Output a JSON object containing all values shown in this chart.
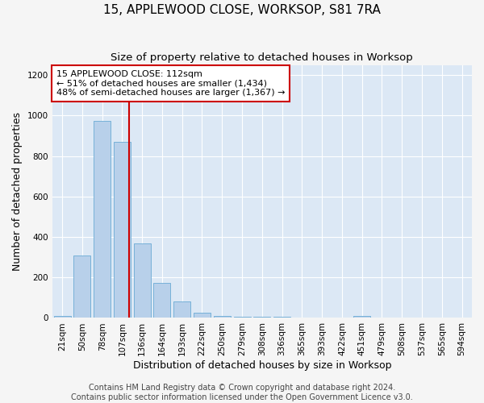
{
  "title": "15, APPLEWOOD CLOSE, WORKSOP, S81 7RA",
  "subtitle": "Size of property relative to detached houses in Worksop",
  "xlabel": "Distribution of detached houses by size in Worksop",
  "ylabel": "Number of detached properties",
  "categories": [
    "21sqm",
    "50sqm",
    "78sqm",
    "107sqm",
    "136sqm",
    "164sqm",
    "193sqm",
    "222sqm",
    "250sqm",
    "279sqm",
    "308sqm",
    "336sqm",
    "365sqm",
    "393sqm",
    "422sqm",
    "451sqm",
    "479sqm",
    "508sqm",
    "537sqm",
    "565sqm",
    "594sqm"
  ],
  "values": [
    10,
    310,
    975,
    870,
    370,
    175,
    80,
    25,
    10,
    5,
    5,
    5,
    0,
    0,
    0,
    10,
    0,
    0,
    0,
    0,
    0
  ],
  "bar_color": "#b8d0ea",
  "bar_edge_color": "#6aaad4",
  "property_line_color": "#cc0000",
  "property_line_index": 3,
  "annotation_text": "15 APPLEWOOD CLOSE: 112sqm\n← 51% of detached houses are smaller (1,434)\n48% of semi-detached houses are larger (1,367) →",
  "annotation_box_color": "#ffffff",
  "annotation_box_edge": "#cc0000",
  "ylim": [
    0,
    1250
  ],
  "yticks": [
    0,
    200,
    400,
    600,
    800,
    1000,
    1200
  ],
  "footer": "Contains HM Land Registry data © Crown copyright and database right 2024.\nContains public sector information licensed under the Open Government Licence v3.0.",
  "fig_background": "#f5f5f5",
  "plot_background": "#dce8f5",
  "grid_color": "#ffffff",
  "title_fontsize": 11,
  "subtitle_fontsize": 9.5,
  "axis_label_fontsize": 9,
  "tick_fontsize": 7.5,
  "annotation_fontsize": 8,
  "footer_fontsize": 7
}
